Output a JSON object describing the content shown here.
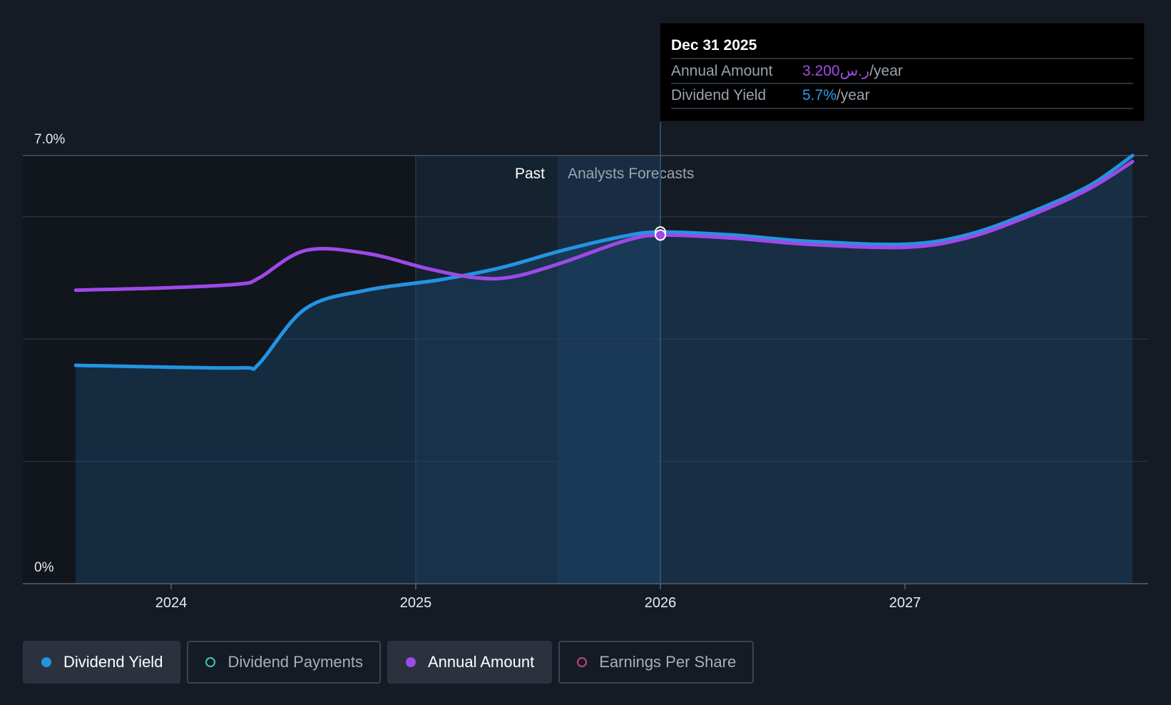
{
  "colors": {
    "background": "#151b24",
    "dividend_yield": "#2394e2",
    "annual_amount": "#9e49e8",
    "dividend_payments": "#3ec6b8",
    "earnings_per_share": "#c2457a",
    "grid": "#2d3540",
    "axis": "#59616c"
  },
  "tooltip": {
    "date": "Dec 31 2025",
    "annual_amount_label": "Annual Amount",
    "annual_amount_value": "3.200ر.س",
    "annual_amount_unit": "/year",
    "dividend_yield_label": "Dividend Yield",
    "dividend_yield_value": "5.7%",
    "dividend_yield_unit": "/year"
  },
  "regions": {
    "past_label": "Past",
    "forecast_label": "Analysts Forecasts"
  },
  "chart_data": {
    "type": "line",
    "title": "",
    "xlabel": "",
    "ylabel": "",
    "x_range": [
      2023.61,
      2027.93
    ],
    "ylim": [
      0,
      7.0
    ],
    "y_tick_labels": [
      "7.0%",
      "0%"
    ],
    "x_ticks": [
      2024,
      2025,
      2026,
      2027
    ],
    "x_tick_labels": [
      "2024",
      "2025",
      "2026",
      "2027"
    ],
    "grid": true,
    "past_start": 2025.0,
    "forecast_start": 2025.58,
    "forecast_boundary": 2026.0,
    "highlight_x": 2026.0,
    "series": [
      {
        "name": "Dividend Yield",
        "key": "dividend_yield",
        "filled": true,
        "x": [
          2023.61,
          2024.0,
          2024.3,
          2024.36,
          2024.55,
          2024.8,
          2025.1,
          2025.35,
          2025.6,
          2025.85,
          2026.0,
          2026.3,
          2026.6,
          2027.0,
          2027.25,
          2027.5,
          2027.75,
          2027.93
        ],
        "y": [
          3.57,
          3.54,
          3.53,
          3.6,
          4.5,
          4.8,
          4.97,
          5.17,
          5.45,
          5.68,
          5.75,
          5.7,
          5.6,
          5.55,
          5.7,
          6.05,
          6.5,
          7.0
        ]
      },
      {
        "name": "Annual Amount",
        "key": "annual_amount",
        "filled": false,
        "x": [
          2023.61,
          2024.0,
          2024.28,
          2024.36,
          2024.55,
          2024.8,
          2025.05,
          2025.25,
          2025.4,
          2025.6,
          2025.85,
          2026.0,
          2026.3,
          2026.6,
          2027.0,
          2027.25,
          2027.5,
          2027.75,
          2027.93
        ],
        "y": [
          4.8,
          4.84,
          4.9,
          5.0,
          5.45,
          5.4,
          5.15,
          5.0,
          5.02,
          5.25,
          5.6,
          5.7,
          5.65,
          5.55,
          5.5,
          5.65,
          6.0,
          6.45,
          6.9
        ]
      }
    ],
    "legend": [
      {
        "label": "Dividend Yield",
        "key": "dividend_yield",
        "active": true,
        "marker": "filled"
      },
      {
        "label": "Dividend Payments",
        "key": "dividend_payments",
        "active": false,
        "marker": "hollow"
      },
      {
        "label": "Annual Amount",
        "key": "annual_amount",
        "active": true,
        "marker": "filled"
      },
      {
        "label": "Earnings Per Share",
        "key": "earnings_per_share",
        "active": false,
        "marker": "hollow"
      }
    ]
  }
}
